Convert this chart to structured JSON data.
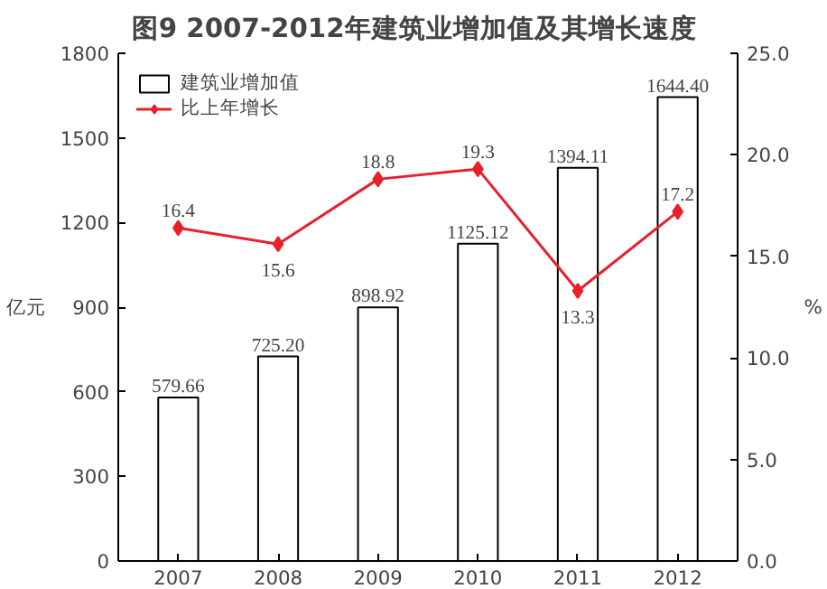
{
  "chart_data": {
    "type": "bar",
    "title": "图9    2007-2012年建筑业增加值及其增长速度",
    "ylabel": "亿元",
    "y2label": "%",
    "categories": [
      "2007",
      "2008",
      "2009",
      "2010",
      "2011",
      "2012"
    ],
    "series": [
      {
        "name": "建筑业增加值",
        "color": "#ffffff",
        "values": [
          579.66,
          725.2,
          898.92,
          1125.12,
          1394.11,
          1644.4
        ],
        "value_labels": [
          "579.66",
          "725.20",
          "898.92",
          "1125.12",
          "1394.11",
          "1644.40"
        ]
      },
      {
        "name": "比上年增长",
        "type": "line",
        "axis": "y2",
        "color": "#e8202a",
        "marker": "diamond",
        "values": [
          16.4,
          15.6,
          18.8,
          19.3,
          13.3,
          17.2
        ],
        "value_labels": [
          "16.4",
          "15.6",
          "18.8",
          "19.3",
          "13.3",
          "17.2"
        ]
      }
    ],
    "ylim": [
      0,
      1800
    ],
    "yticks": [
      0,
      300,
      600,
      900,
      1200,
      1500,
      1800
    ],
    "y2lim": [
      0,
      25
    ],
    "y2ticks": [
      {
        "value": 0,
        "label": "0.0"
      },
      {
        "value": 5,
        "label": "5.0"
      },
      {
        "value": 10,
        "label": "10.0"
      },
      {
        "value": 15,
        "label": "15.0"
      },
      {
        "value": 20,
        "label": "20.0"
      },
      {
        "value": 25,
        "label": "25.0"
      }
    ],
    "legend": "top left",
    "grid": false
  }
}
